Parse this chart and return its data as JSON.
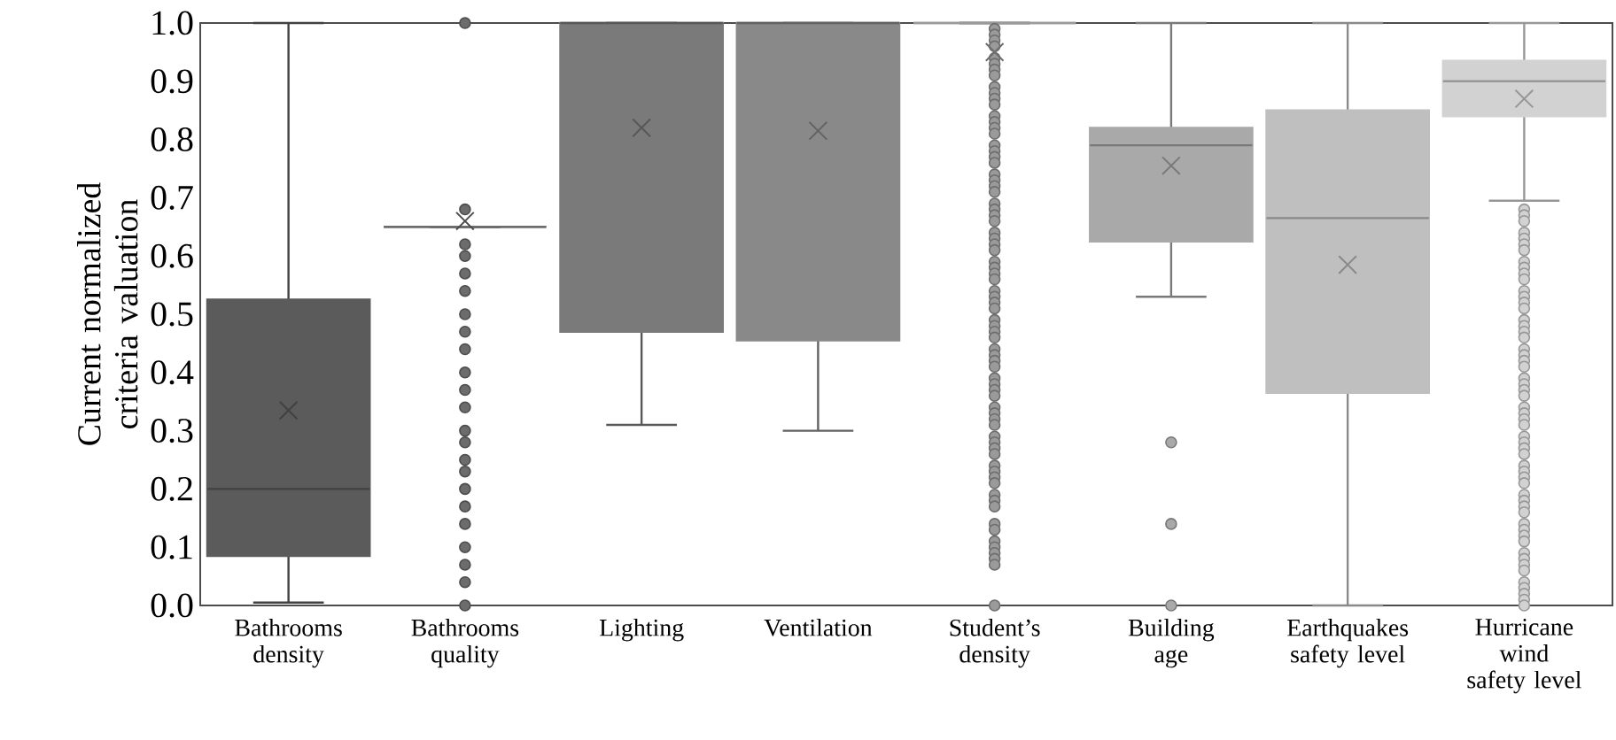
{
  "chart_data": {
    "type": "box",
    "ylabel": "Current normalized criteria valuation",
    "categories": [
      "Bathrooms density",
      "Bathrooms quality",
      "Lighting",
      "Ventilation",
      "Student’s density",
      "Building age",
      "Earthquakes safety level",
      "Hurricane wind safety level"
    ],
    "colors": [
      "#5b5b5b",
      "#6c6c6c",
      "#7a7a7a",
      "#898989",
      "#9a9a9a",
      "#a9a9a9",
      "#bfbfbf",
      "#d2d2d2"
    ],
    "ylim": [
      0,
      1
    ],
    "yticks": [
      {
        "value": 0,
        "label": "0.0"
      },
      {
        "value": 0.1,
        "label": "0.1"
      },
      {
        "value": 0.2,
        "label": "0.2"
      },
      {
        "value": 0.3,
        "label": "0.3"
      },
      {
        "value": 0.4,
        "label": "0.4"
      },
      {
        "value": 0.5,
        "label": "0.5"
      },
      {
        "value": 0.6,
        "label": "0.6"
      },
      {
        "value": 0.7,
        "label": "0.7"
      },
      {
        "value": 0.8,
        "label": "0.8"
      },
      {
        "value": 0.9,
        "label": "0.9"
      },
      {
        "value": 1,
        "label": "1.0"
      }
    ],
    "boxes": [
      {
        "low": 0.005,
        "q1": 0.085,
        "median": 0.2,
        "q3": 0.525,
        "high": 1.0,
        "mean": 0.335
      },
      {
        "low": 0.65,
        "q1": 0.65,
        "median": 0.65,
        "q3": 0.65,
        "high": 0.65,
        "mean": 0.66,
        "outliers": [
          1.0,
          0.68,
          0.62,
          0.6,
          0.57,
          0.54,
          0.5,
          0.47,
          0.44,
          0.4,
          0.37,
          0.34,
          0.3,
          0.28,
          0.25,
          0.23,
          0.2,
          0.17,
          0.14,
          0.1,
          0.07,
          0.04,
          0.0
        ]
      },
      {
        "low": 0.31,
        "q1": 0.47,
        "median": 1.0,
        "q3": 1.0,
        "high": 1.0,
        "mean": 0.82
      },
      {
        "low": 0.3,
        "q1": 0.455,
        "median": 1.0,
        "q3": 1.0,
        "high": 1.0,
        "mean": 0.815
      },
      {
        "low": 1.0,
        "q1": 1.0,
        "median": 1.0,
        "q3": 1.0,
        "high": 1.0,
        "mean": 0.95,
        "outliers": [
          0.99,
          0.98,
          0.97,
          0.96,
          0.94,
          0.93,
          0.92,
          0.91,
          0.89,
          0.88,
          0.87,
          0.86,
          0.84,
          0.83,
          0.82,
          0.81,
          0.79,
          0.78,
          0.77,
          0.76,
          0.74,
          0.73,
          0.72,
          0.71,
          0.69,
          0.68,
          0.67,
          0.66,
          0.64,
          0.63,
          0.62,
          0.61,
          0.59,
          0.58,
          0.57,
          0.56,
          0.54,
          0.53,
          0.52,
          0.51,
          0.49,
          0.48,
          0.47,
          0.46,
          0.44,
          0.43,
          0.42,
          0.41,
          0.39,
          0.38,
          0.37,
          0.36,
          0.34,
          0.33,
          0.32,
          0.31,
          0.29,
          0.28,
          0.27,
          0.26,
          0.24,
          0.23,
          0.22,
          0.21,
          0.19,
          0.18,
          0.17,
          0.14,
          0.13,
          0.11,
          0.1,
          0.09,
          0.08,
          0.07,
          0.0
        ]
      },
      {
        "low": 0.53,
        "q1": 0.625,
        "median": 0.79,
        "q3": 0.82,
        "high": 1.0,
        "mean": 0.755,
        "outliers": [
          0.28,
          0.14,
          0.0
        ]
      },
      {
        "low": 0.0,
        "q1": 0.365,
        "median": 0.665,
        "q3": 0.85,
        "high": 1.0,
        "mean": 0.585
      },
      {
        "low": 0.695,
        "q1": 0.84,
        "median": 0.9,
        "q3": 0.935,
        "high": 1.0,
        "mean": 0.87,
        "outliers": [
          0.68,
          0.67,
          0.66,
          0.64,
          0.63,
          0.62,
          0.61,
          0.59,
          0.58,
          0.57,
          0.56,
          0.54,
          0.53,
          0.52,
          0.51,
          0.49,
          0.48,
          0.47,
          0.46,
          0.44,
          0.43,
          0.42,
          0.41,
          0.39,
          0.38,
          0.37,
          0.36,
          0.34,
          0.33,
          0.32,
          0.31,
          0.29,
          0.28,
          0.27,
          0.26,
          0.24,
          0.23,
          0.22,
          0.21,
          0.19,
          0.18,
          0.17,
          0.16,
          0.14,
          0.13,
          0.12,
          0.11,
          0.09,
          0.08,
          0.07,
          0.06,
          0.04,
          0.03,
          0.02,
          0.01,
          0.0
        ]
      }
    ]
  }
}
